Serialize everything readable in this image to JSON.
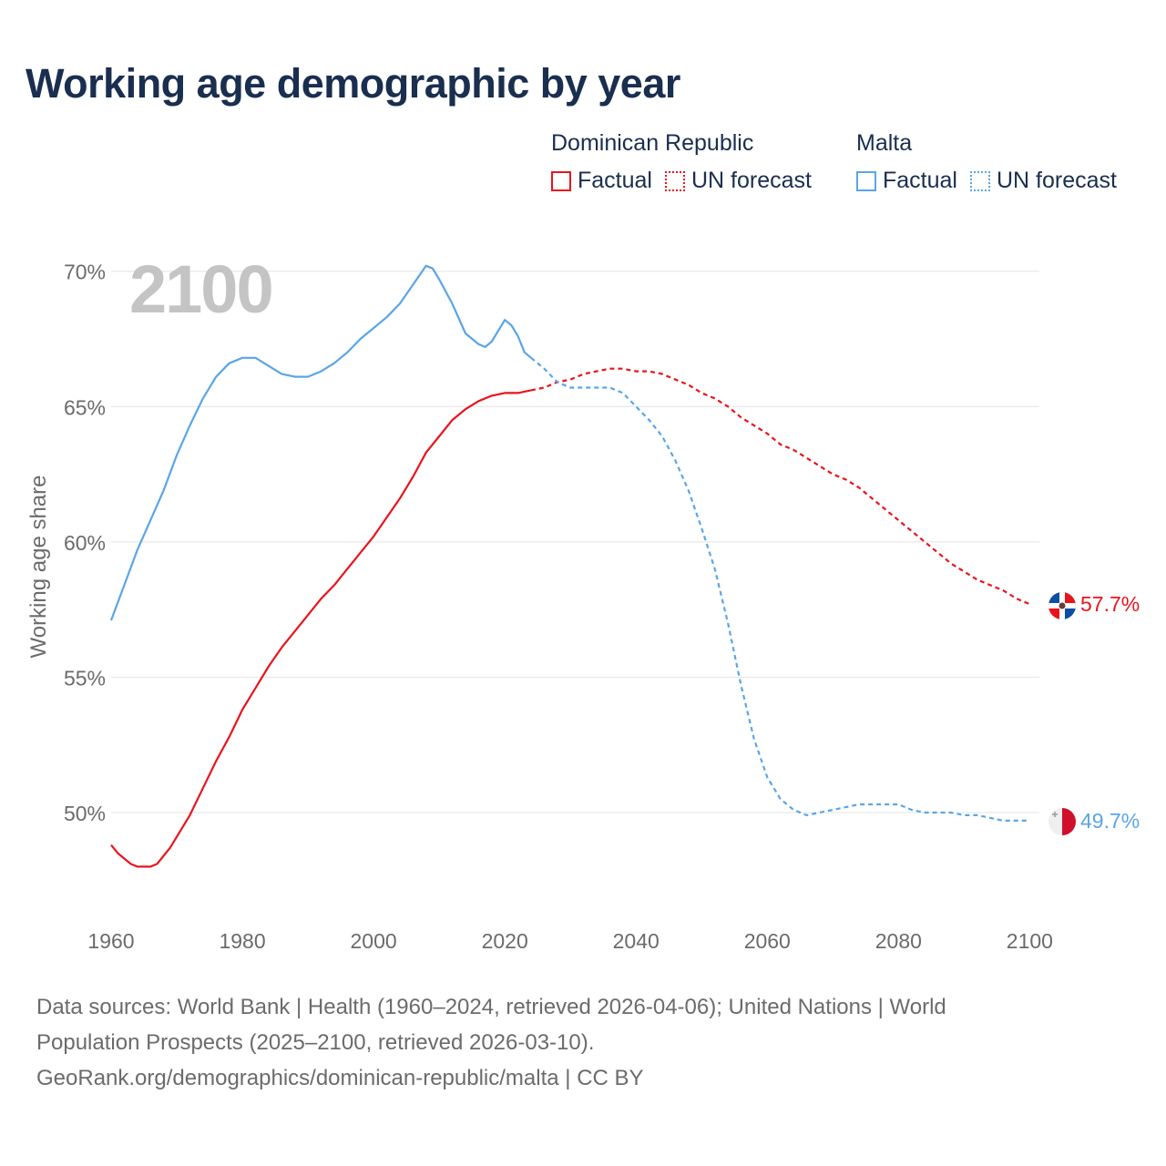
{
  "title": "Working age demographic by year",
  "legend": [
    {
      "group": "Dominican Republic",
      "items": [
        "Factual",
        "UN forecast"
      ],
      "color": "#e8141d"
    },
    {
      "group": "Malta",
      "items": [
        "Factual",
        "UN forecast"
      ],
      "color": "#5aa5e6"
    }
  ],
  "source": {
    "line1": "Data sources: World Bank | Health (1960–2024, retrieved 2026-04-06); United Nations | World",
    "line2": "Population Prospects (2025–2100, retrieved 2026-03-10).",
    "line3": "GeoRank.org/demographics/dominican-republic/malta | CC BY"
  },
  "chart_data": {
    "type": "line",
    "title": "Working age demographic by year",
    "year_label": "2100",
    "xlabel": "",
    "ylabel": "Working age share",
    "xlim": [
      1960,
      2103
    ],
    "ylim": [
      46.7,
      71
    ],
    "x_ticks": [
      1960,
      1980,
      2000,
      2020,
      2040,
      2060,
      2080,
      2100
    ],
    "y_ticks": [
      50,
      55,
      60,
      65,
      70
    ],
    "y_tick_labels": [
      "50%",
      "55%",
      "60%",
      "65%",
      "70%"
    ],
    "grid": true,
    "last_factual_year": 2024,
    "series": [
      {
        "name": "Dominican Republic",
        "color": "#e8141d",
        "end_label": "57.7%",
        "x": [
          1960,
          1961,
          1962,
          1963,
          1964,
          1965,
          1966,
          1967,
          1968,
          1969,
          1970,
          1972,
          1974,
          1976,
          1978,
          1980,
          1982,
          1984,
          1986,
          1988,
          1990,
          1992,
          1994,
          1996,
          1998,
          2000,
          2002,
          2004,
          2006,
          2008,
          2010,
          2012,
          2014,
          2016,
          2018,
          2020,
          2022,
          2024,
          2026,
          2028,
          2030,
          2032,
          2034,
          2036,
          2038,
          2040,
          2042,
          2044,
          2046,
          2048,
          2050,
          2052,
          2054,
          2056,
          2058,
          2060,
          2062,
          2064,
          2066,
          2068,
          2070,
          2072,
          2074,
          2076,
          2078,
          2080,
          2082,
          2084,
          2086,
          2088,
          2090,
          2092,
          2094,
          2096,
          2098,
          2100
        ],
        "values": [
          48.8,
          48.5,
          48.3,
          48.1,
          48.0,
          48.0,
          48.0,
          48.1,
          48.4,
          48.7,
          49.1,
          49.9,
          50.9,
          51.9,
          52.8,
          53.8,
          54.6,
          55.4,
          56.1,
          56.7,
          57.3,
          57.9,
          58.4,
          59.0,
          59.6,
          60.2,
          60.9,
          61.6,
          62.4,
          63.3,
          63.9,
          64.5,
          64.9,
          65.2,
          65.4,
          65.5,
          65.5,
          65.6,
          65.7,
          65.9,
          66.0,
          66.2,
          66.3,
          66.4,
          66.4,
          66.3,
          66.3,
          66.2,
          66.0,
          65.8,
          65.5,
          65.3,
          65.0,
          64.6,
          64.3,
          64.0,
          63.6,
          63.4,
          63.1,
          62.8,
          62.5,
          62.3,
          62.0,
          61.6,
          61.2,
          60.8,
          60.4,
          60.0,
          59.6,
          59.2,
          58.9,
          58.6,
          58.4,
          58.2,
          57.9,
          57.7
        ]
      },
      {
        "name": "Malta",
        "color": "#5aa5e6",
        "end_label": "49.7%",
        "x": [
          1960,
          1962,
          1964,
          1966,
          1968,
          1970,
          1972,
          1974,
          1976,
          1978,
          1980,
          1982,
          1984,
          1986,
          1988,
          1990,
          1992,
          1994,
          1996,
          1998,
          2000,
          2002,
          2004,
          2006,
          2008,
          2009,
          2010,
          2012,
          2014,
          2016,
          2017,
          2018,
          2020,
          2021,
          2022,
          2023,
          2024,
          2026,
          2028,
          2030,
          2032,
          2034,
          2036,
          2038,
          2040,
          2042,
          2044,
          2046,
          2048,
          2050,
          2052,
          2054,
          2056,
          2058,
          2060,
          2062,
          2064,
          2066,
          2068,
          2070,
          2072,
          2074,
          2076,
          2078,
          2080,
          2082,
          2084,
          2086,
          2088,
          2090,
          2092,
          2094,
          2096,
          2098,
          2100
        ],
        "values": [
          57.1,
          58.4,
          59.7,
          60.8,
          61.9,
          63.2,
          64.3,
          65.3,
          66.1,
          66.6,
          66.8,
          66.8,
          66.5,
          66.2,
          66.1,
          66.1,
          66.3,
          66.6,
          67.0,
          67.5,
          67.9,
          68.3,
          68.8,
          69.5,
          70.2,
          70.1,
          69.7,
          68.8,
          67.7,
          67.3,
          67.2,
          67.4,
          68.2,
          68.0,
          67.6,
          67.0,
          66.8,
          66.4,
          65.9,
          65.7,
          65.7,
          65.7,
          65.7,
          65.5,
          65.0,
          64.5,
          63.9,
          63.0,
          61.9,
          60.5,
          59.0,
          57.0,
          54.7,
          52.7,
          51.3,
          50.5,
          50.1,
          49.9,
          50.0,
          50.1,
          50.2,
          50.3,
          50.3,
          50.3,
          50.3,
          50.1,
          50.0,
          50.0,
          50.0,
          49.9,
          49.9,
          49.8,
          49.7,
          49.7,
          49.7
        ]
      }
    ]
  }
}
